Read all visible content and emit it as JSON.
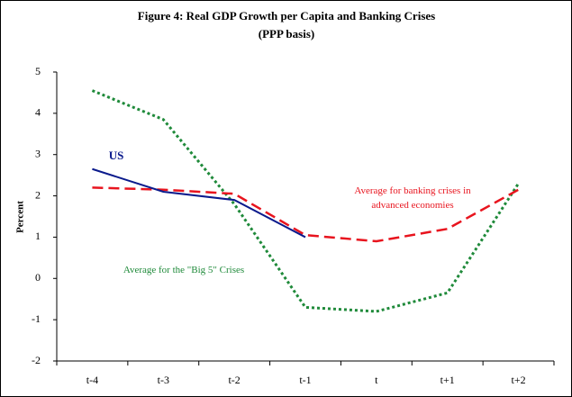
{
  "chart_data": {
    "type": "line",
    "title": "Figure 4:  Real GDP Growth per Capita and Banking Crises",
    "subtitle": "(PPP basis)",
    "y_label": "Percent",
    "categories": [
      "t-4",
      "t-3",
      "t-2",
      "t-1",
      "t",
      "t+1",
      "t+2"
    ],
    "series": [
      {
        "name": "Average for the \"Big 5\" Crises",
        "color": "#1f8a3a",
        "style": "dotted",
        "values": [
          4.55,
          3.85,
          1.8,
          -0.7,
          -0.8,
          -0.35,
          2.3
        ]
      },
      {
        "name": "Average for banking crises in advanced economies",
        "color": "#e8141e",
        "style": "dashed",
        "values": [
          2.2,
          2.15,
          2.05,
          1.05,
          0.9,
          1.2,
          2.15
        ]
      },
      {
        "name": "US",
        "color": "#0a1a8c",
        "style": "solid",
        "values": [
          2.65,
          2.1,
          1.9,
          1.0,
          null,
          null,
          null
        ]
      }
    ],
    "ylim": [
      -2,
      5
    ],
    "yticks": [
      -2,
      -1,
      0,
      1,
      2,
      3,
      4,
      5
    ]
  }
}
